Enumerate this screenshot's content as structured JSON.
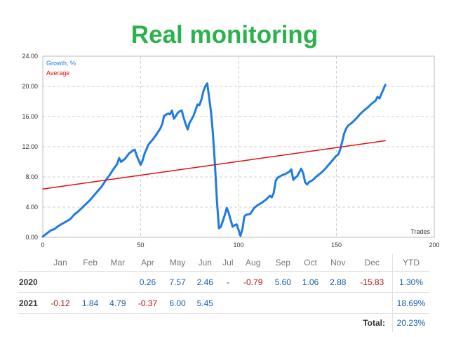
{
  "title": "Real monitoring",
  "chart_data": {
    "type": "line",
    "x_ticks": [
      "0",
      "50",
      "100",
      "150",
      "200"
    ],
    "y_ticks": [
      "0.00",
      "4.00",
      "8.00",
      "12.00",
      "16.00",
      "20.00",
      "24.00"
    ],
    "xlim": [
      0,
      200
    ],
    "ylim": [
      0,
      24
    ],
    "x_axis_note": "Trades",
    "grid": true,
    "legend_position": "top-left",
    "series": [
      {
        "name": "Growth, %",
        "color": "#1f7be0",
        "points": [
          [
            0,
            0.1
          ],
          [
            2,
            0.5
          ],
          [
            4,
            0.9
          ],
          [
            6,
            1.1
          ],
          [
            8,
            1.5
          ],
          [
            10,
            1.8
          ],
          [
            12,
            2.1
          ],
          [
            14,
            2.4
          ],
          [
            16,
            3.0
          ],
          [
            18,
            3.4
          ],
          [
            20,
            3.9
          ],
          [
            22,
            4.4
          ],
          [
            24,
            4.9
          ],
          [
            26,
            5.5
          ],
          [
            28,
            6.1
          ],
          [
            30,
            6.7
          ],
          [
            32,
            7.5
          ],
          [
            34,
            8.2
          ],
          [
            36,
            9.0
          ],
          [
            38,
            9.7
          ],
          [
            39,
            10.5
          ],
          [
            40,
            10.0
          ],
          [
            42,
            10.4
          ],
          [
            44,
            11.1
          ],
          [
            46,
            11.5
          ],
          [
            47,
            11.6
          ],
          [
            48,
            10.8
          ],
          [
            49,
            10.2
          ],
          [
            50,
            9.6
          ],
          [
            51,
            10.2
          ],
          [
            52,
            11.1
          ],
          [
            54,
            12.3
          ],
          [
            56,
            12.9
          ],
          [
            58,
            13.6
          ],
          [
            60,
            14.4
          ],
          [
            61,
            15.0
          ],
          [
            62,
            16.1
          ],
          [
            64,
            16.4
          ],
          [
            65,
            16.3
          ],
          [
            66,
            16.8
          ],
          [
            67,
            15.7
          ],
          [
            68,
            16.1
          ],
          [
            69,
            16.5
          ],
          [
            70,
            16.7
          ],
          [
            71,
            16.8
          ],
          [
            72,
            15.8
          ],
          [
            73,
            15.0
          ],
          [
            74,
            14.3
          ],
          [
            75,
            15.2
          ],
          [
            76,
            15.6
          ],
          [
            77,
            16.1
          ],
          [
            78,
            16.8
          ],
          [
            79,
            17.6
          ],
          [
            80,
            17.5
          ],
          [
            81,
            18.2
          ],
          [
            82,
            19.3
          ],
          [
            83,
            20.0
          ],
          [
            84,
            20.4
          ],
          [
            85,
            18.5
          ],
          [
            86,
            16.5
          ],
          [
            87,
            13.5
          ],
          [
            88,
            9.5
          ],
          [
            89,
            4.7
          ],
          [
            90,
            1.2
          ],
          [
            91,
            1.4
          ],
          [
            92,
            2.2
          ],
          [
            93,
            3.0
          ],
          [
            94,
            3.9
          ],
          [
            95,
            3.2
          ],
          [
            96,
            2.3
          ],
          [
            97,
            1.4
          ],
          [
            98,
            1.6
          ],
          [
            99,
            1.7
          ],
          [
            100,
            1.0
          ],
          [
            101,
            0.2
          ],
          [
            102,
            1.1
          ],
          [
            103,
            2.8
          ],
          [
            104,
            3.0
          ],
          [
            106,
            3.1
          ],
          [
            108,
            3.9
          ],
          [
            110,
            4.3
          ],
          [
            112,
            4.6
          ],
          [
            114,
            5.0
          ],
          [
            116,
            5.5
          ],
          [
            117,
            5.3
          ],
          [
            118,
            5.9
          ],
          [
            119,
            7.5
          ],
          [
            120,
            7.9
          ],
          [
            122,
            8.2
          ],
          [
            124,
            8.4
          ],
          [
            126,
            8.7
          ],
          [
            127,
            9.0
          ],
          [
            128,
            7.6
          ],
          [
            129,
            7.9
          ],
          [
            130,
            8.1
          ],
          [
            131,
            8.6
          ],
          [
            132,
            9.1
          ],
          [
            133,
            8.5
          ],
          [
            134,
            7.3
          ],
          [
            135,
            7.0
          ],
          [
            136,
            7.3
          ],
          [
            138,
            7.6
          ],
          [
            140,
            8.1
          ],
          [
            142,
            8.5
          ],
          [
            144,
            9.0
          ],
          [
            146,
            9.6
          ],
          [
            148,
            10.2
          ],
          [
            150,
            10.8
          ],
          [
            151,
            11.0
          ],
          [
            152,
            11.7
          ],
          [
            153,
            12.7
          ],
          [
            154,
            13.8
          ],
          [
            155,
            14.4
          ],
          [
            156,
            14.8
          ],
          [
            158,
            15.2
          ],
          [
            160,
            15.7
          ],
          [
            162,
            16.3
          ],
          [
            164,
            16.8
          ],
          [
            166,
            17.2
          ],
          [
            168,
            17.7
          ],
          [
            170,
            18.1
          ],
          [
            171,
            18.6
          ],
          [
            172,
            18.4
          ],
          [
            173,
            19.0
          ],
          [
            174,
            19.6
          ],
          [
            175,
            20.2
          ]
        ]
      },
      {
        "name": "Average",
        "color": "#e01010",
        "points": [
          [
            0,
            6.4
          ],
          [
            175,
            12.8
          ]
        ]
      }
    ]
  },
  "table": {
    "months": [
      "Jan",
      "Feb",
      "Mar",
      "Apr",
      "May",
      "Jun",
      "Jul",
      "Aug",
      "Sep",
      "Oct",
      "Nov",
      "Dec"
    ],
    "ytd_header": "YTD",
    "rows": [
      {
        "year": "2020",
        "values": [
          "",
          "",
          "",
          "0.26",
          "7.57",
          "2.46",
          "-",
          "-0.79",
          "5.60",
          "1.06",
          "2.88",
          "-15.83"
        ],
        "ytd": "1.30%"
      },
      {
        "year": "2021",
        "values": [
          "-0.12",
          "1.84",
          "4.79",
          "-0.37",
          "6.00",
          "5.45",
          "",
          "",
          "",
          "",
          "",
          ""
        ],
        "ytd": "18.69%"
      }
    ],
    "total_label": "Total:",
    "total_value": "20.23%"
  },
  "colors": {
    "title": "#2bb24c",
    "positive": "#1a5fa3",
    "negative": "#b0181c"
  }
}
